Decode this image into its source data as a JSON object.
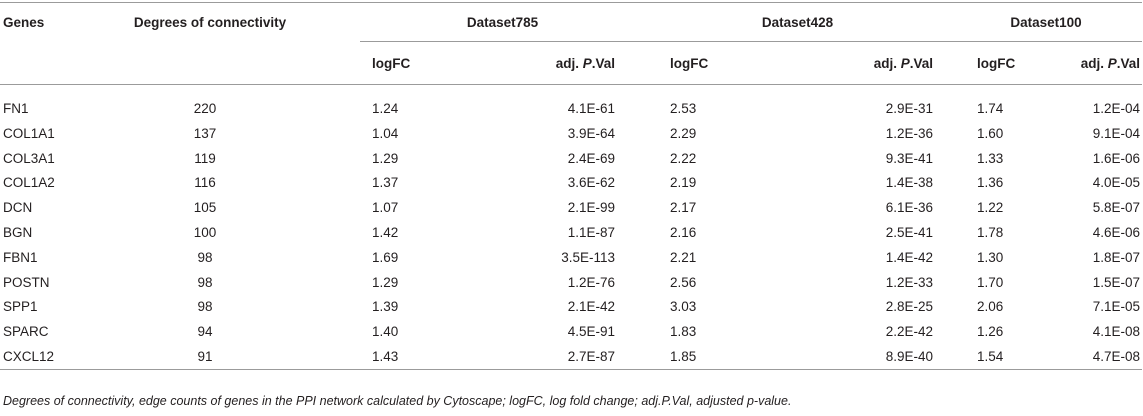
{
  "table": {
    "headers": {
      "genes": "Genes",
      "degrees": "Degrees of connectivity",
      "datasets": [
        "Dataset785",
        "Dataset428",
        "Dataset100"
      ],
      "logfc": "logFC",
      "adj_prefix": "adj. ",
      "adj_italic": "P",
      "adj_suffix": ".Val"
    },
    "rows": [
      {
        "gene": "FN1",
        "degree": "220",
        "d785_logfc": "1.24",
        "d785_adj": "4.1E-61",
        "d428_logfc": "2.53",
        "d428_adj": "2.9E-31",
        "d100_logfc": "1.74",
        "d100_adj": "1.2E-04"
      },
      {
        "gene": "COL1A1",
        "degree": "137",
        "d785_logfc": "1.04",
        "d785_adj": "3.9E-64",
        "d428_logfc": "2.29",
        "d428_adj": "1.2E-36",
        "d100_logfc": "1.60",
        "d100_adj": "9.1E-04"
      },
      {
        "gene": "COL3A1",
        "degree": "119",
        "d785_logfc": "1.29",
        "d785_adj": "2.4E-69",
        "d428_logfc": "2.22",
        "d428_adj": "9.3E-41",
        "d100_logfc": "1.33",
        "d100_adj": "1.6E-06"
      },
      {
        "gene": "COL1A2",
        "degree": "116",
        "d785_logfc": "1.37",
        "d785_adj": "3.6E-62",
        "d428_logfc": "2.19",
        "d428_adj": "1.4E-38",
        "d100_logfc": "1.36",
        "d100_adj": "4.0E-05"
      },
      {
        "gene": "DCN",
        "degree": "105",
        "d785_logfc": "1.07",
        "d785_adj": "2.1E-99",
        "d428_logfc": "2.17",
        "d428_adj": "6.1E-36",
        "d100_logfc": "1.22",
        "d100_adj": "5.8E-07"
      },
      {
        "gene": "BGN",
        "degree": "100",
        "d785_logfc": "1.42",
        "d785_adj": "1.1E-87",
        "d428_logfc": "2.16",
        "d428_adj": "2.5E-41",
        "d100_logfc": "1.78",
        "d100_adj": "4.6E-06"
      },
      {
        "gene": "FBN1",
        "degree": "98",
        "d785_logfc": "1.69",
        "d785_adj": "3.5E-113",
        "d428_logfc": "2.21",
        "d428_adj": "1.4E-42",
        "d100_logfc": "1.30",
        "d100_adj": "1.8E-07"
      },
      {
        "gene": "POSTN",
        "degree": "98",
        "d785_logfc": "1.29",
        "d785_adj": "1.2E-76",
        "d428_logfc": "2.56",
        "d428_adj": "1.2E-33",
        "d100_logfc": "1.70",
        "d100_adj": "1.5E-07"
      },
      {
        "gene": "SPP1",
        "degree": "98",
        "d785_logfc": "1.39",
        "d785_adj": "2.1E-42",
        "d428_logfc": "3.03",
        "d428_adj": "2.8E-25",
        "d100_logfc": "2.06",
        "d100_adj": "7.1E-05"
      },
      {
        "gene": "SPARC",
        "degree": "94",
        "d785_logfc": "1.40",
        "d785_adj": "4.5E-91",
        "d428_logfc": "1.83",
        "d428_adj": "2.2E-42",
        "d100_logfc": "1.26",
        "d100_adj": "4.1E-08"
      },
      {
        "gene": "CXCL12",
        "degree": "91",
        "d785_logfc": "1.43",
        "d785_adj": "2.7E-87",
        "d428_logfc": "1.85",
        "d428_adj": "8.9E-40",
        "d100_logfc": "1.54",
        "d100_adj": "4.7E-08"
      }
    ]
  },
  "footnote": "Degrees of connectivity, edge counts of genes in the PPI network calculated by Cytoscape; logFC, log fold change; adj.P.Val, adjusted p-value."
}
